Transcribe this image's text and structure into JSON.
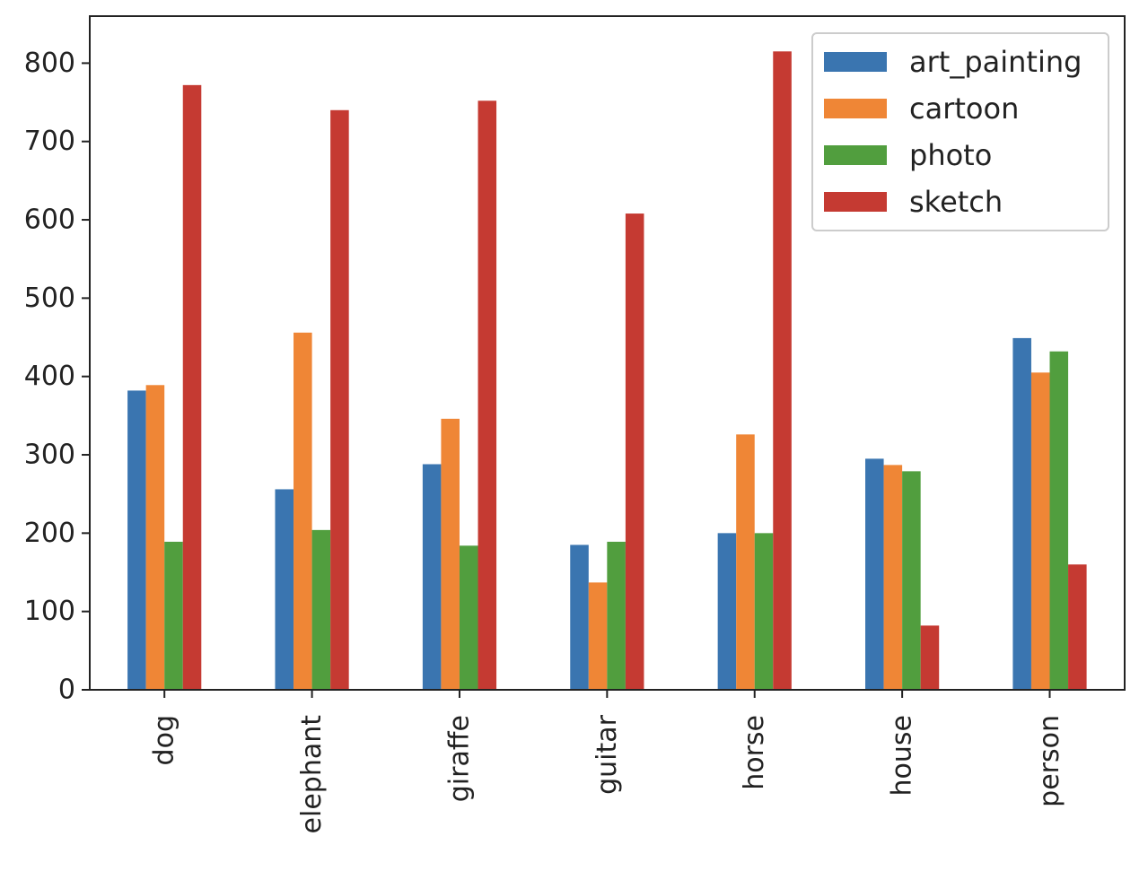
{
  "chart_data": {
    "type": "bar",
    "title": "",
    "xlabel": "",
    "ylabel": "",
    "categories": [
      "dog",
      "elephant",
      "giraffe",
      "guitar",
      "horse",
      "house",
      "person"
    ],
    "series": [
      {
        "name": "art_painting",
        "color": "#3a75b0",
        "values": [
          382,
          256,
          288,
          185,
          200,
          295,
          449
        ]
      },
      {
        "name": "cartoon",
        "color": "#ef8636",
        "values": [
          389,
          456,
          346,
          137,
          326,
          287,
          405
        ]
      },
      {
        "name": "photo",
        "color": "#519e3e",
        "values": [
          189,
          204,
          184,
          189,
          200,
          279,
          432
        ]
      },
      {
        "name": "sketch",
        "color": "#c53a32",
        "values": [
          772,
          740,
          752,
          608,
          815,
          82,
          160
        ]
      }
    ],
    "ylim": [
      0,
      860
    ],
    "yticks": [
      0,
      100,
      200,
      300,
      400,
      500,
      600,
      700,
      800
    ],
    "grid": false,
    "legend_position": "top-right",
    "x_tick_rotation": "vertical"
  }
}
